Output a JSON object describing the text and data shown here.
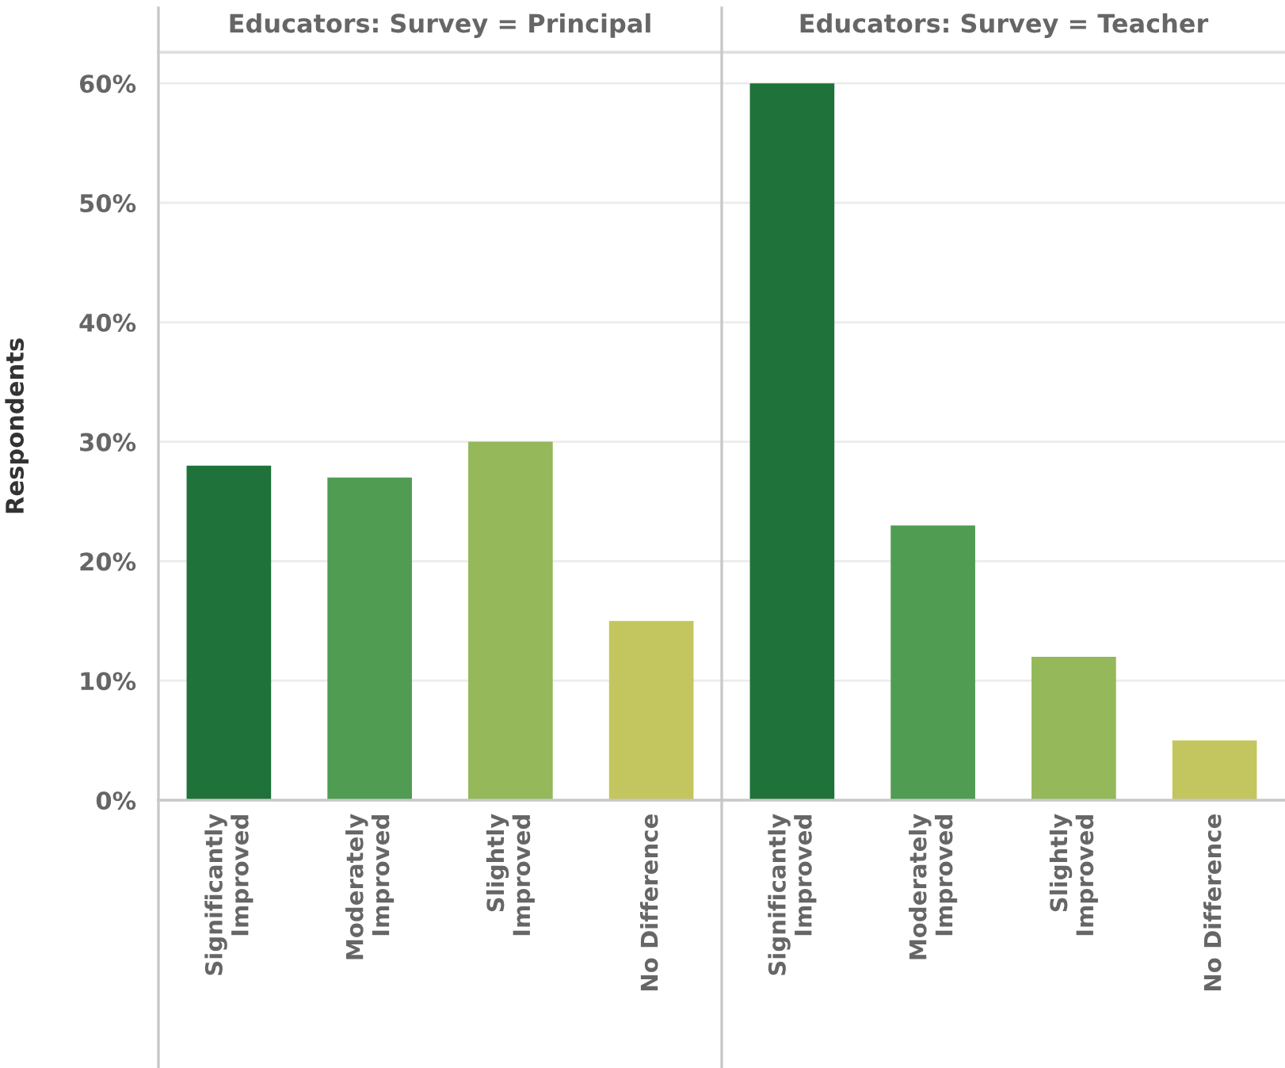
{
  "chart_data": [
    {
      "type": "bar",
      "title": "Educators: Survey = Principal",
      "ylabel": "Respondents",
      "categories": [
        "Significantly\nImproved",
        "Moderately\nImproved",
        "Slightly\nImproved",
        "No Difference"
      ],
      "values": [
        28,
        27,
        30,
        15
      ],
      "colors": [
        "#1e723a",
        "#4f9c52",
        "#94b85a",
        "#c3c65e"
      ],
      "ylim": [
        0,
        62.6
      ],
      "yticks": [
        {
          "value": 0,
          "label": "0%"
        },
        {
          "value": 10,
          "label": "10%"
        },
        {
          "value": 20,
          "label": "20%"
        },
        {
          "value": 30,
          "label": "30%"
        },
        {
          "value": 40,
          "label": "40%"
        },
        {
          "value": 50,
          "label": "50%"
        },
        {
          "value": 60,
          "label": "60%"
        }
      ],
      "grid": "y"
    },
    {
      "type": "bar",
      "title": "Educators: Survey = Teacher",
      "categories": [
        "Significantly\nImproved",
        "Moderately\nImproved",
        "Slightly\nImproved",
        "No Difference"
      ],
      "values": [
        60,
        23,
        12,
        5
      ],
      "colors": [
        "#1e723a",
        "#4f9c52",
        "#94b85a",
        "#c3c65e"
      ],
      "ylim": [
        0,
        62.6
      ],
      "yticks": [
        0,
        10,
        20,
        30,
        40,
        50,
        60
      ],
      "grid": "y",
      "tick_labels": "x"
    }
  ]
}
